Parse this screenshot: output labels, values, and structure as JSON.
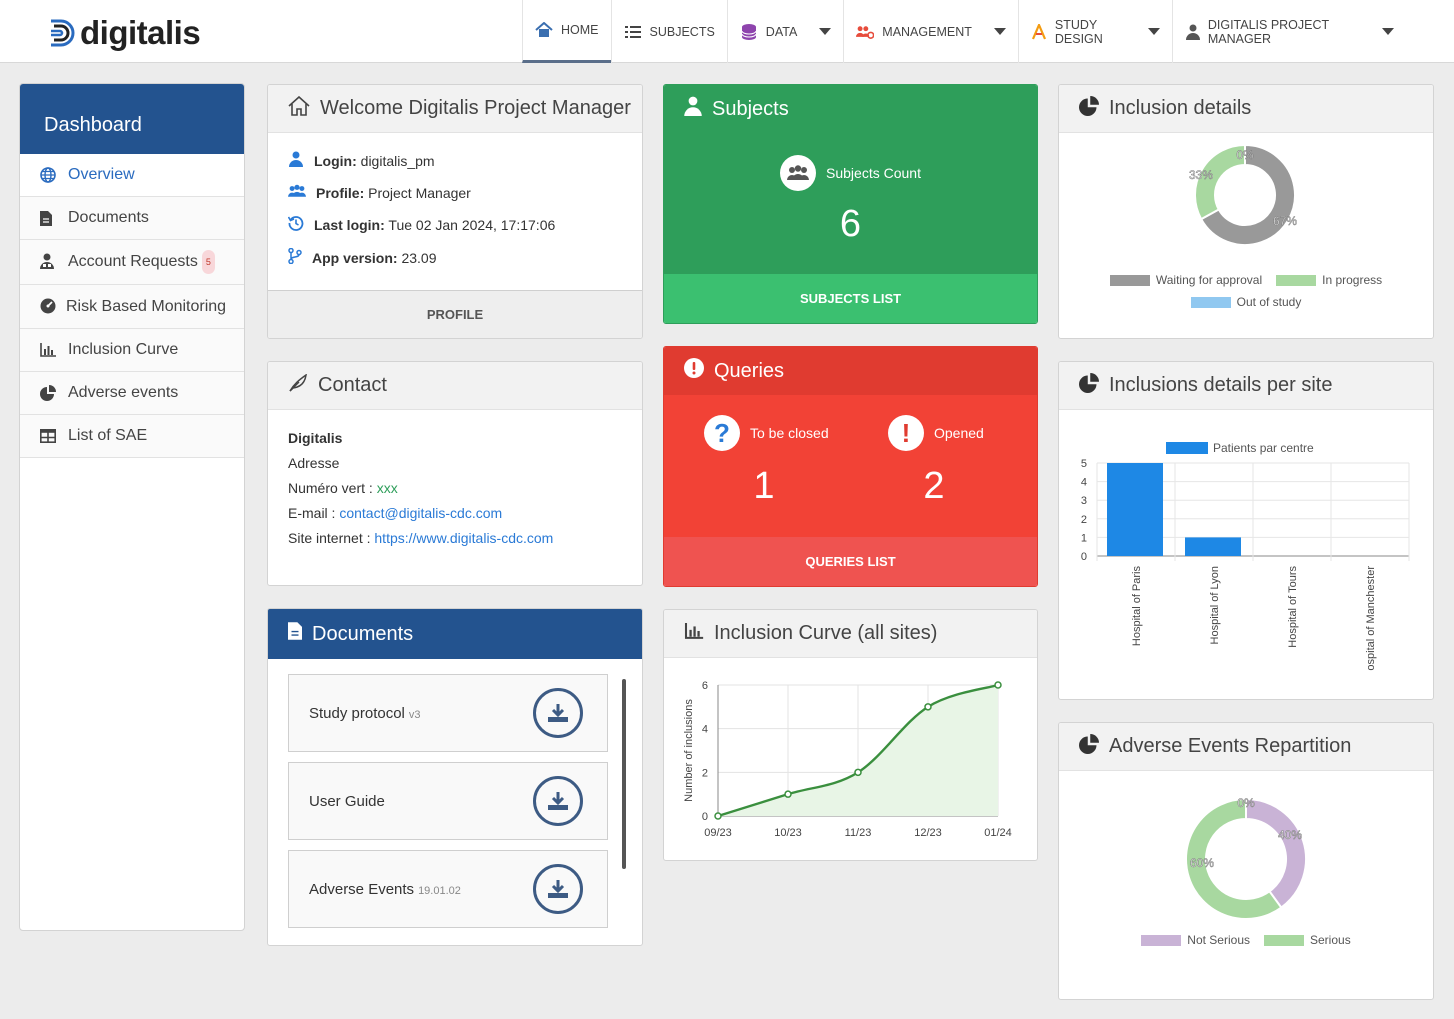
{
  "app": {
    "logo_text": "digitalis"
  },
  "nav": {
    "home": "HOME",
    "subjects": "SUBJECTS",
    "data": "DATA",
    "management": "MANAGEMENT",
    "study_design": "STUDY DESIGN",
    "user": "DIGITALIS PROJECT MANAGER"
  },
  "sidebar": {
    "title": "Dashboard",
    "items": [
      {
        "label": "Overview",
        "icon": "globe-icon"
      },
      {
        "label": "Documents",
        "icon": "file-icon"
      },
      {
        "label": "Account Requests",
        "icon": "user-tie-icon",
        "badge": "5"
      },
      {
        "label": "Risk Based Monitoring",
        "icon": "gauge-icon"
      },
      {
        "label": "Inclusion Curve",
        "icon": "bar-chart-icon"
      },
      {
        "label": "Adverse events",
        "icon": "pie-chart-icon"
      },
      {
        "label": "List of SAE",
        "icon": "table-icon"
      }
    ]
  },
  "welcome": {
    "title": "Welcome Digitalis Project Manager",
    "login_label": "Login:",
    "login_value": "digitalis_pm",
    "profile_label": "Profile:",
    "profile_value": "Project Manager",
    "last_login_label": "Last login:",
    "last_login_value": "Tue 02 Jan 2024, 17:17:06",
    "app_version_label": "App version:",
    "app_version_value": "23.09",
    "footer_button": "PROFILE"
  },
  "contact": {
    "title": "Contact",
    "company": "Digitalis",
    "address": "Adresse",
    "phone_label": "Numéro vert : ",
    "phone_value": "xxx",
    "email_label": "E-mail : ",
    "email_value": "contact@digitalis-cdc.com",
    "site_label": "Site internet : ",
    "site_value": "https://www.digitalis-cdc.com"
  },
  "documents": {
    "title": "Documents",
    "items": [
      {
        "name": "Study protocol",
        "version": "v3"
      },
      {
        "name": "User Guide",
        "version": ""
      },
      {
        "name": "Adverse Events",
        "version": "19.01.02"
      }
    ]
  },
  "subjects": {
    "title": "Subjects",
    "count_label": "Subjects Count",
    "count_value": "6",
    "footer_button": "SUBJECTS LIST"
  },
  "queries": {
    "title": "Queries",
    "to_be_closed_label": "To be closed",
    "to_be_closed_value": "1",
    "opened_label": "Opened",
    "opened_value": "2",
    "footer_button": "QUERIES LIST"
  },
  "inclusion_details": {
    "title": "Inclusion details",
    "legend": [
      "Waiting for approval",
      "In progress",
      "Out of study"
    ],
    "labels": [
      "0%",
      "33%",
      "67%"
    ],
    "colors": [
      "#999999",
      "#a8d8a0",
      "#90c8f0"
    ]
  },
  "per_site": {
    "title": "Inclusions details per site",
    "legend": "Patients par centre",
    "yticks": [
      "0",
      "1",
      "2",
      "3",
      "4",
      "5"
    ],
    "sites": [
      "Hospital of Paris",
      "Hospital of Lyon",
      "Hospital of Tours",
      "ospital of Manchester"
    ],
    "color": "#1e88e5"
  },
  "inclusion_curve": {
    "title": "Inclusion Curve (all sites)",
    "ylabel": "Number of inclusions",
    "xticks": [
      "09/23",
      "10/23",
      "11/23",
      "12/23",
      "01/24"
    ],
    "yticks": [
      "0",
      "2",
      "4",
      "6"
    ]
  },
  "adverse": {
    "title": "Adverse Events Repartition",
    "legend": [
      "Not Serious",
      "Serious"
    ],
    "labels": [
      "0%",
      "40%",
      "60%"
    ],
    "colors": [
      "#c9b3d6",
      "#a8d8a0"
    ]
  },
  "chart_data": [
    {
      "type": "pie",
      "title": "Inclusion details",
      "categories": [
        "Waiting for approval",
        "In progress",
        "Out of study"
      ],
      "values": [
        67,
        33,
        0
      ],
      "legend": "bottom"
    },
    {
      "type": "bar",
      "title": "Inclusions details per site",
      "categories": [
        "Hospital of Paris",
        "Hospital of Lyon",
        "Hospital of Tours",
        "ospital of Manchester"
      ],
      "series": [
        {
          "name": "Patients par centre",
          "values": [
            5,
            1,
            0,
            0
          ]
        }
      ],
      "ylim": [
        0,
        5
      ],
      "legend": "top"
    },
    {
      "type": "area",
      "title": "Inclusion Curve (all sites)",
      "x": [
        "09/23",
        "10/23",
        "11/23",
        "12/23",
        "01/24"
      ],
      "values": [
        0,
        1,
        2,
        5,
        6
      ],
      "ylabel": "Number of inclusions",
      "ylim": [
        0,
        6
      ],
      "grid": true
    },
    {
      "type": "pie",
      "title": "Adverse Events Repartition",
      "categories": [
        "Not Serious",
        "Serious"
      ],
      "values": [
        40,
        60
      ],
      "legend": "bottom"
    }
  ]
}
